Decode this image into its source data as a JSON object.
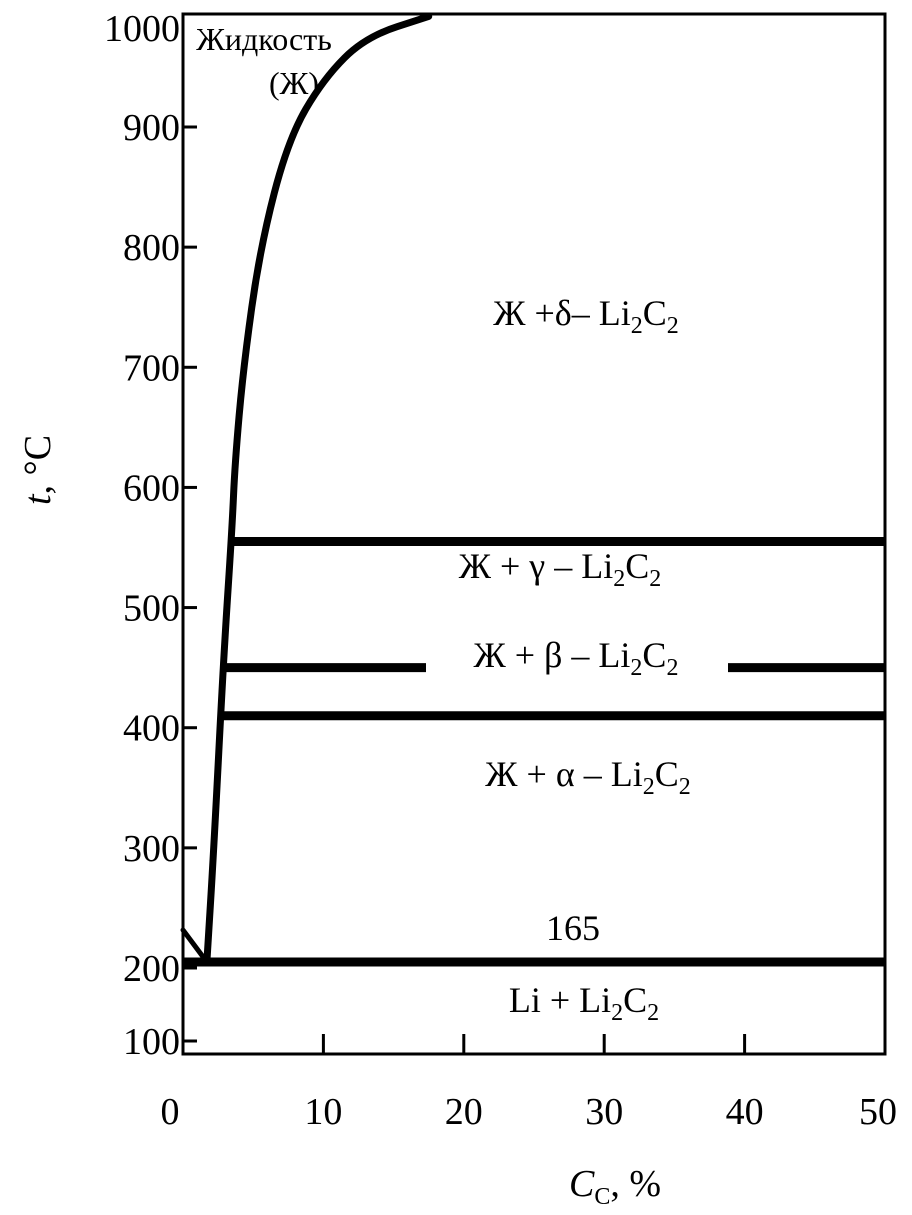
{
  "diagram": {
    "y_axis": {
      "title_symbol": "t",
      "title_unit": ", °C",
      "ticks": [
        "1000",
        "900",
        "800",
        "700",
        "600",
        "500",
        "400",
        "300",
        "200",
        "100"
      ],
      "tick_values": [
        1000,
        900,
        800,
        700,
        600,
        500,
        400,
        300,
        200,
        100
      ]
    },
    "x_axis": {
      "title_symbol": "C",
      "title_subscript": "C",
      "title_unit": ", %",
      "ticks": [
        "0",
        "10",
        "20",
        "30",
        "40",
        "50"
      ],
      "tick_values": [
        0,
        10,
        20,
        30,
        40,
        50
      ]
    },
    "liquid_region": {
      "line1": "Жидкость",
      "line2": "(Ж)"
    },
    "regions": {
      "delta": {
        "prefix": "Ж +δ– Li",
        "sub1": "2",
        "mid": "C",
        "sub2": "2"
      },
      "gamma": {
        "prefix": "Ж + γ – Li",
        "sub1": "2",
        "mid": "C",
        "sub2": "2"
      },
      "beta": {
        "prefix": "Ж + β – Li",
        "sub1": "2",
        "mid": "C",
        "sub2": "2"
      },
      "alpha": {
        "prefix": "Ж + α – Li",
        "sub1": "2",
        "mid": "C",
        "sub2": "2"
      },
      "solid": {
        "prefix": "Li + Li",
        "sub1": "2",
        "mid": "C",
        "sub2": "2"
      }
    },
    "eutectic_label": "165",
    "isotherms_c": [
      165,
      415,
      460,
      567
    ],
    "liquidus": [
      {
        "c": 1.7,
        "t": 165
      },
      {
        "c": 2.2,
        "t": 300
      },
      {
        "c": 2.9,
        "t": 460
      },
      {
        "c": 3.5,
        "t": 567
      },
      {
        "c": 3.7,
        "t": 620
      },
      {
        "c": 4.3,
        "t": 700
      },
      {
        "c": 5.5,
        "t": 800
      },
      {
        "c": 7.5,
        "t": 890
      },
      {
        "c": 10,
        "t": 940
      },
      {
        "c": 13,
        "t": 975
      },
      {
        "c": 17.5,
        "t": 992
      }
    ],
    "colors": {
      "line": "#000000",
      "background": "#ffffff"
    }
  }
}
